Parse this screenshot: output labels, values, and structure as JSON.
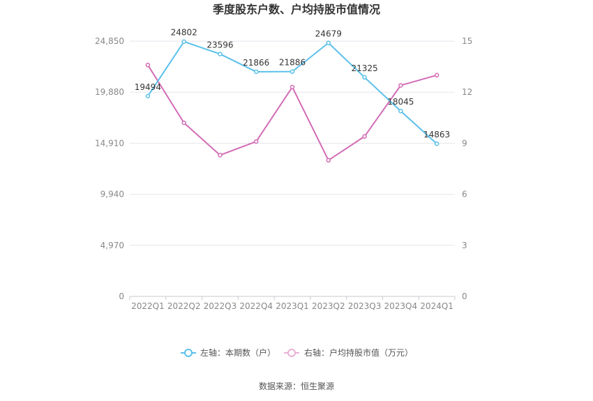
{
  "chart_data": {
    "type": "line",
    "title": "季度股东户数、户均持股市值情况",
    "categories": [
      "2022Q1",
      "2022Q2",
      "2022Q3",
      "2022Q4",
      "2023Q1",
      "2023Q2",
      "2023Q3",
      "2023Q4",
      "2024Q1"
    ],
    "left_axis": {
      "ticks": [
        "0",
        "4,970",
        "9,940",
        "14,910",
        "19,880",
        "24,850"
      ],
      "ylim": [
        0,
        24850
      ]
    },
    "right_axis": {
      "ticks": [
        "0",
        "3",
        "6",
        "9",
        "12",
        "15"
      ],
      "ylim": [
        0,
        15
      ]
    },
    "series": [
      {
        "name": "左轴：本期数（户）",
        "axis": "left",
        "color": "#5bc0eb",
        "values": [
          19494,
          24802,
          23596,
          21866,
          21886,
          24679,
          21325,
          18045,
          14863
        ],
        "labels": [
          "19494",
          "24802",
          "23596",
          "21866",
          "21886",
          "24679",
          "21325",
          "18045",
          "14863"
        ]
      },
      {
        "name": "右轴：户均持股市值（万元）",
        "axis": "right",
        "color": "#d36bb5",
        "values": [
          13.6,
          10.2,
          8.3,
          9.1,
          12.3,
          8.0,
          9.4,
          12.4,
          13.0
        ]
      }
    ],
    "grid": true,
    "legend_position": "bottom"
  },
  "legend": {
    "left_label": "左轴：本期数（户）",
    "right_label": "右轴：户均持股市值（万元）"
  },
  "source": "数据来源：恒生聚源"
}
